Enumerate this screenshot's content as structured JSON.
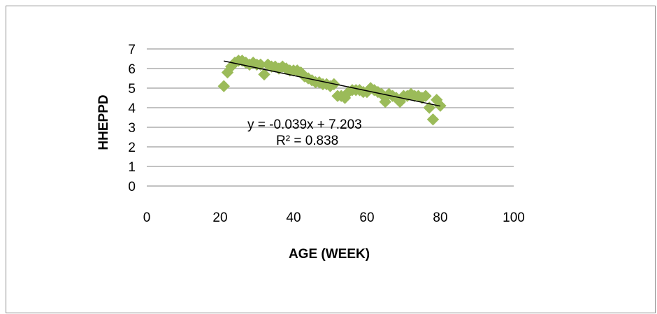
{
  "chart_data": {
    "type": "scatter",
    "title": "",
    "xlabel": "AGE (WEEK)",
    "ylabel": "HHEPPD",
    "xlim": [
      0,
      100
    ],
    "ylim": [
      0,
      7
    ],
    "x_ticks": [
      0,
      20,
      40,
      60,
      80,
      100
    ],
    "y_ticks": [
      0,
      1,
      2,
      3,
      4,
      5,
      6,
      7
    ],
    "grid": "horizontal major gridlines",
    "legend": "none",
    "series": [
      {
        "marker": "diamond",
        "color": "#9bbb59",
        "x": [
          21,
          22,
          23,
          24,
          25,
          26,
          27,
          28,
          29,
          30,
          31,
          32,
          33,
          34,
          35,
          36,
          37,
          38,
          39,
          40,
          41,
          42,
          43,
          44,
          45,
          46,
          47,
          48,
          49,
          50,
          51,
          52,
          53,
          54,
          55,
          56,
          57,
          58,
          59,
          60,
          61,
          62,
          63,
          64,
          65,
          66,
          67,
          68,
          69,
          70,
          71,
          72,
          73,
          74,
          75,
          76,
          77,
          78,
          79,
          80
        ],
        "y": [
          5.1,
          5.8,
          6.1,
          6.3,
          6.4,
          6.4,
          6.3,
          6.2,
          6.3,
          6.2,
          6.2,
          5.7,
          6.2,
          6.1,
          6.1,
          6.0,
          6.1,
          6.0,
          5.9,
          5.9,
          5.9,
          5.8,
          5.6,
          5.5,
          5.4,
          5.3,
          5.3,
          5.2,
          5.2,
          5.1,
          5.2,
          4.6,
          4.6,
          4.5,
          4.8,
          4.9,
          4.9,
          4.9,
          4.8,
          4.8,
          5.0,
          4.9,
          4.8,
          4.7,
          4.3,
          4.7,
          4.6,
          4.5,
          4.3,
          4.6,
          4.6,
          4.7,
          4.6,
          4.6,
          4.5,
          4.6,
          4.0,
          3.4,
          4.4,
          4.1
        ]
      }
    ],
    "trendline": {
      "type": "linear",
      "slope": -0.039,
      "intercept": 7.203,
      "x_range": [
        21,
        80
      ],
      "color": "#000000"
    },
    "annotations": {
      "equation": "y = -0.039x + 7.203",
      "r_squared": "R² = 0.838"
    }
  }
}
